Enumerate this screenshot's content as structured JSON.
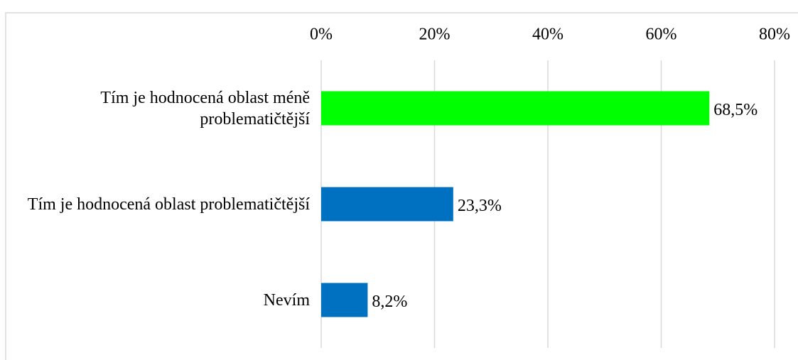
{
  "chart_data": {
    "type": "bar",
    "orientation": "horizontal",
    "categories": [
      "Tím je hodnocená oblast méně problematičtější",
      "Tím je hodnocená oblast problematičtější",
      "Nevím"
    ],
    "values": [
      68.5,
      23.3,
      8.2
    ],
    "value_labels": [
      "68,5%",
      "23,3%",
      "8,2%"
    ],
    "colors": [
      "#00ff00",
      "#0070c0",
      "#0070c0"
    ],
    "xlim": [
      0,
      80
    ],
    "xticks": [
      {
        "value": 0,
        "label": "0%"
      },
      {
        "value": 20,
        "label": "20%"
      },
      {
        "value": 40,
        "label": "40%"
      },
      {
        "value": 60,
        "label": "60%"
      },
      {
        "value": 80,
        "label": "80%"
      }
    ],
    "grid": true
  }
}
